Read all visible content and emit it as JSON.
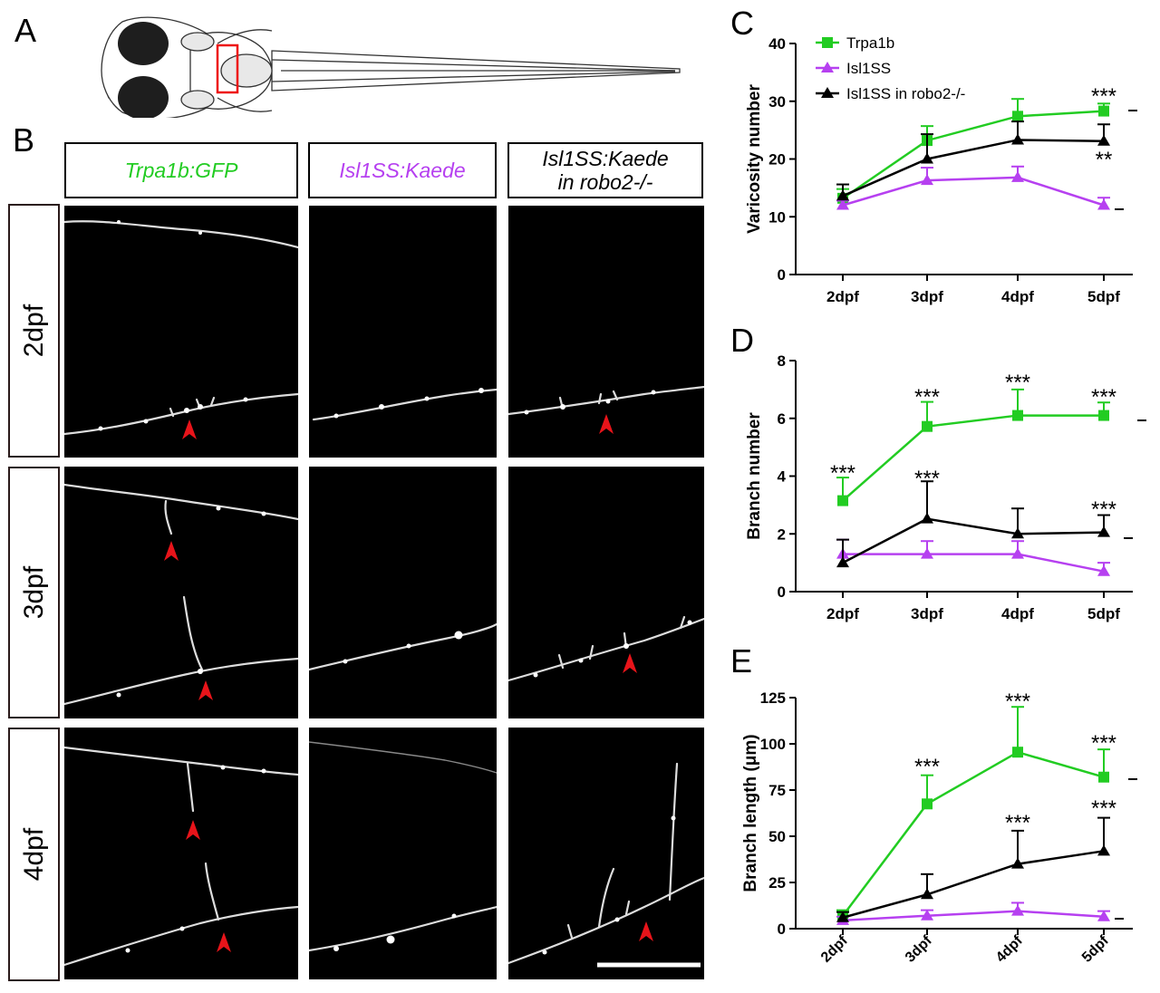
{
  "panels": {
    "a": "A",
    "b": "B",
    "c": "C",
    "d": "D",
    "e": "E"
  },
  "headers": {
    "trpa1b": "Trpa1b:GFP",
    "isl1ss": "Isl1SS:Kaede",
    "isl1ss_robo_line1": "Isl1SS:Kaede",
    "isl1ss_robo_line2": "in robo2-/-"
  },
  "rows": [
    "2dpf",
    "3dpf",
    "4dpf"
  ],
  "colors": {
    "trpa1b": "#22cc22",
    "isl1ss": "#b640f0",
    "robo": "#000000",
    "arrow": "#e8141a"
  },
  "chart_data": [
    {
      "type": "line",
      "panel": "C",
      "ylabel": "Varicosity number",
      "categories": [
        "2dpf",
        "3dpf",
        "4dpf",
        "5dpf"
      ],
      "ylim": [
        0,
        40
      ],
      "yticks": [
        "0",
        "10",
        "20",
        "30",
        "40"
      ],
      "legend": [
        "Trpa1b",
        "Isl1SS",
        "Isl1SS in robo2-/-"
      ],
      "series": [
        {
          "name": "Trpa1b",
          "values": [
            13.2,
            23.2,
            27.4,
            28.3
          ],
          "err": [
            1.6,
            2.5,
            3.0,
            1.3
          ]
        },
        {
          "name": "Isl1SS",
          "values": [
            12.0,
            16.3,
            16.8,
            12.0
          ],
          "err": [
            0.8,
            2.2,
            1.9,
            1.3
          ]
        },
        {
          "name": "Isl1SS in robo2-/-",
          "values": [
            13.6,
            20.0,
            23.3,
            23.1
          ],
          "err": [
            2.0,
            4.3,
            3.2,
            2.9
          ]
        }
      ],
      "annotations": [
        "***",
        "**"
      ]
    },
    {
      "type": "line",
      "panel": "D",
      "ylabel": "Branch number",
      "categories": [
        "2dpf",
        "3dpf",
        "4dpf",
        "5dpf"
      ],
      "ylim": [
        0,
        8
      ],
      "yticks": [
        "0",
        "2",
        "4",
        "6",
        "8"
      ],
      "series": [
        {
          "name": "Trpa1b",
          "values": [
            3.15,
            5.72,
            6.1,
            6.1
          ],
          "err": [
            0.8,
            0.85,
            0.9,
            0.45
          ]
        },
        {
          "name": "Isl1SS",
          "values": [
            1.3,
            1.3,
            1.3,
            0.7
          ],
          "err": [
            0.5,
            0.45,
            0.45,
            0.3
          ]
        },
        {
          "name": "Isl1SS in robo2-/-",
          "values": [
            1.0,
            2.52,
            2.0,
            2.05
          ],
          "err": [
            0.8,
            1.3,
            0.88,
            0.6
          ]
        }
      ],
      "annotations": [
        "***",
        "***",
        "***",
        "***",
        "***",
        "***"
      ]
    },
    {
      "type": "line",
      "panel": "E",
      "ylabel": "Branch length (μm)",
      "categories": [
        "2dpf",
        "3dpf",
        "4dpf",
        "5dpf"
      ],
      "ylim": [
        0,
        125
      ],
      "yticks": [
        "0",
        "25",
        "50",
        "75",
        "100",
        "125"
      ],
      "series": [
        {
          "name": "Trpa1b",
          "values": [
            7,
            67.5,
            95.5,
            82
          ],
          "err": [
            3,
            15.5,
            24.5,
            15
          ]
        },
        {
          "name": "Isl1SS",
          "values": [
            4.5,
            7,
            9.5,
            6.5
          ],
          "err": [
            2,
            3,
            4.5,
            3
          ]
        },
        {
          "name": "Isl1SS in robo2-/-",
          "values": [
            6,
            18.5,
            35,
            42
          ],
          "err": [
            3,
            11,
            18,
            18
          ]
        }
      ],
      "annotations": [
        "***",
        "***",
        "***",
        "***",
        "***"
      ]
    }
  ]
}
